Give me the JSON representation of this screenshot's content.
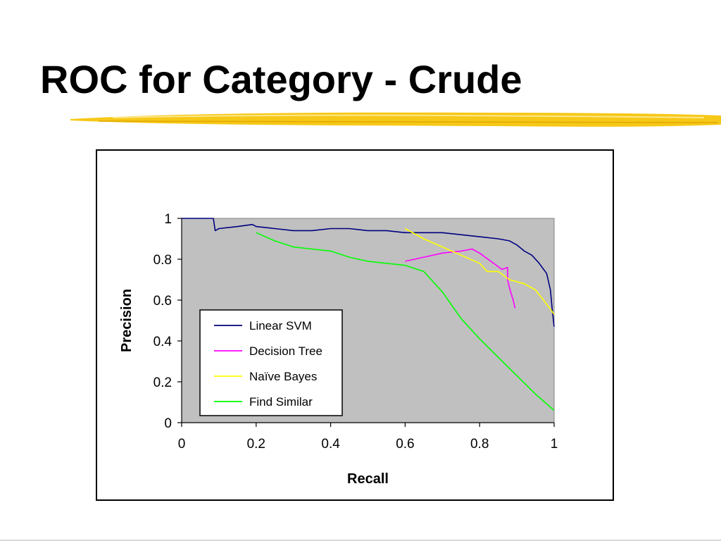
{
  "slide": {
    "title": "ROC for Category - Crude",
    "accent_color": "#f6c817"
  },
  "chart_data": {
    "type": "line",
    "xlabel": "Recall",
    "ylabel": "Precision",
    "xlim": [
      0,
      1
    ],
    "ylim": [
      0,
      1
    ],
    "xticks": [
      0,
      0.2,
      0.4,
      0.6,
      0.8,
      1
    ],
    "xtick_labels": [
      "0",
      "0.2",
      "0.4",
      "0.6",
      "0.8",
      "1"
    ],
    "yticks": [
      0,
      0.2,
      0.4,
      0.6,
      0.8,
      1
    ],
    "ytick_labels": [
      "0",
      "0.2",
      "0.4",
      "0.6",
      "0.8",
      "1"
    ],
    "plot_background": "#c0c0c0",
    "grid": false,
    "legend_position": "inside-lower-left",
    "series": [
      {
        "name": "Linear SVM",
        "color": "#000080",
        "points": [
          [
            0,
            1.0
          ],
          [
            0.085,
            1.0
          ],
          [
            0.09,
            0.94
          ],
          [
            0.1,
            0.95
          ],
          [
            0.15,
            0.96
          ],
          [
            0.19,
            0.97
          ],
          [
            0.2,
            0.96
          ],
          [
            0.25,
            0.95
          ],
          [
            0.3,
            0.94
          ],
          [
            0.35,
            0.94
          ],
          [
            0.4,
            0.95
          ],
          [
            0.45,
            0.95
          ],
          [
            0.5,
            0.94
          ],
          [
            0.55,
            0.94
          ],
          [
            0.6,
            0.93
          ],
          [
            0.65,
            0.93
          ],
          [
            0.7,
            0.93
          ],
          [
            0.75,
            0.92
          ],
          [
            0.8,
            0.91
          ],
          [
            0.85,
            0.9
          ],
          [
            0.88,
            0.89
          ],
          [
            0.9,
            0.87
          ],
          [
            0.92,
            0.84
          ],
          [
            0.94,
            0.82
          ],
          [
            0.96,
            0.78
          ],
          [
            0.98,
            0.73
          ],
          [
            0.99,
            0.65
          ],
          [
            0.995,
            0.55
          ],
          [
            1.0,
            0.47
          ]
        ]
      },
      {
        "name": "Decision Tree",
        "color": "#ff00ff",
        "points": [
          [
            0.6,
            0.79
          ],
          [
            0.65,
            0.81
          ],
          [
            0.7,
            0.83
          ],
          [
            0.75,
            0.84
          ],
          [
            0.78,
            0.85
          ],
          [
            0.8,
            0.83
          ],
          [
            0.83,
            0.79
          ],
          [
            0.86,
            0.75
          ],
          [
            0.875,
            0.76
          ],
          [
            0.875,
            0.7
          ],
          [
            0.88,
            0.66
          ],
          [
            0.89,
            0.6
          ],
          [
            0.895,
            0.56
          ]
        ]
      },
      {
        "name": "Naïve Bayes",
        "color": "#ffff00",
        "points": [
          [
            0.6,
            0.95
          ],
          [
            0.65,
            0.9
          ],
          [
            0.7,
            0.86
          ],
          [
            0.75,
            0.82
          ],
          [
            0.8,
            0.78
          ],
          [
            0.82,
            0.74
          ],
          [
            0.85,
            0.74
          ],
          [
            0.88,
            0.7
          ],
          [
            0.92,
            0.68
          ],
          [
            0.95,
            0.65
          ],
          [
            0.98,
            0.58
          ],
          [
            1.0,
            0.53
          ]
        ]
      },
      {
        "name": "Find Similar",
        "color": "#00ff00",
        "points": [
          [
            0.2,
            0.93
          ],
          [
            0.25,
            0.89
          ],
          [
            0.3,
            0.86
          ],
          [
            0.35,
            0.85
          ],
          [
            0.4,
            0.84
          ],
          [
            0.45,
            0.81
          ],
          [
            0.5,
            0.79
          ],
          [
            0.55,
            0.78
          ],
          [
            0.6,
            0.77
          ],
          [
            0.65,
            0.74
          ],
          [
            0.7,
            0.64
          ],
          [
            0.75,
            0.51
          ],
          [
            0.8,
            0.41
          ],
          [
            0.85,
            0.32
          ],
          [
            0.9,
            0.23
          ],
          [
            0.95,
            0.14
          ],
          [
            1.0,
            0.06
          ]
        ]
      }
    ]
  }
}
